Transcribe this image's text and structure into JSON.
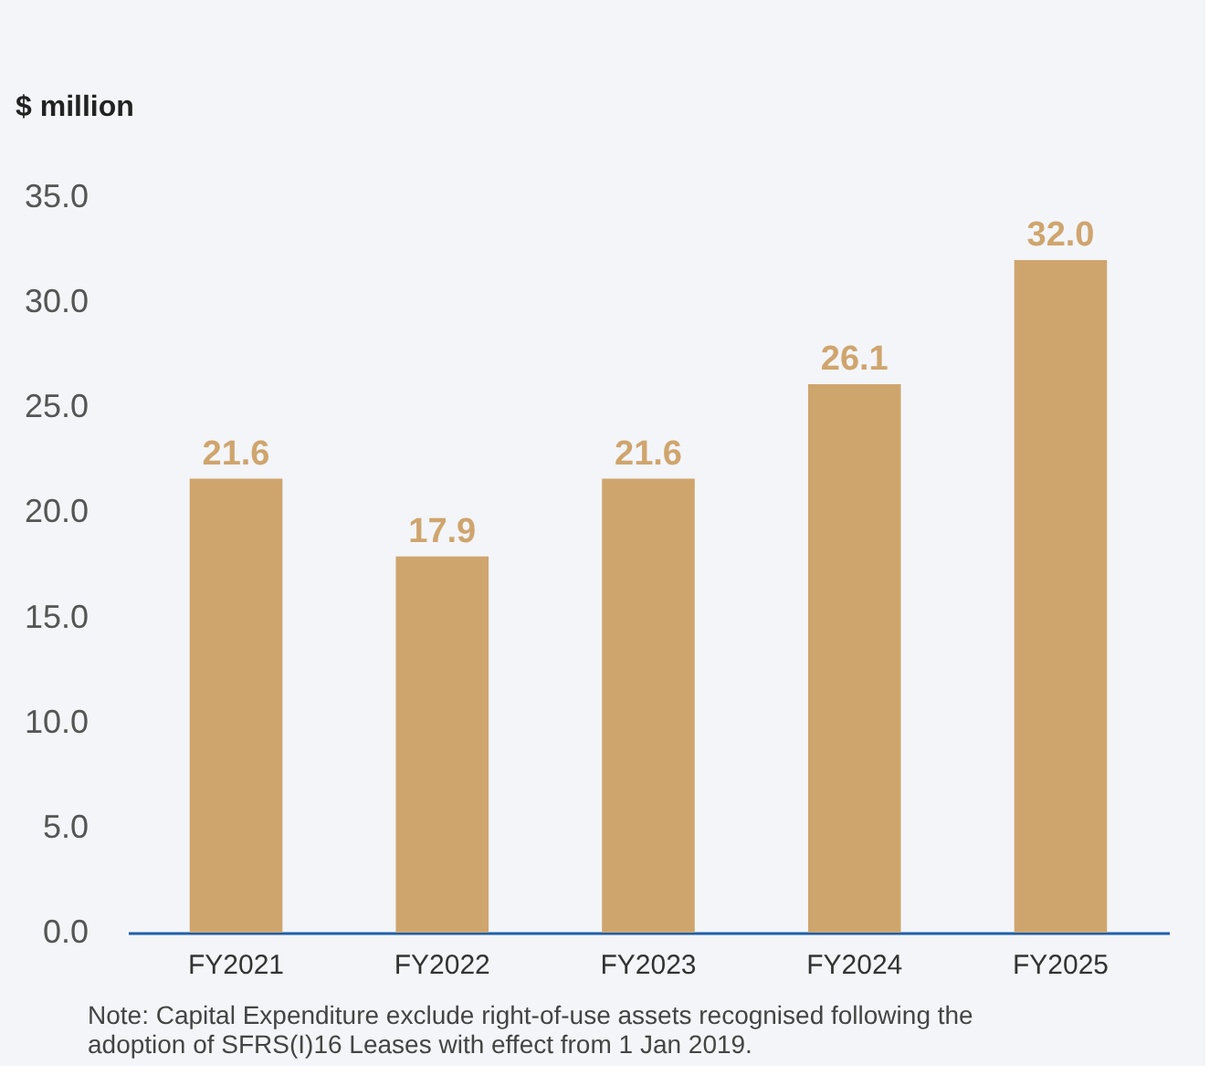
{
  "chart_data": {
    "type": "bar",
    "ylabel": "$ million",
    "categories": [
      "FY2021",
      "FY2022",
      "FY2023",
      "FY2024",
      "FY2025"
    ],
    "values": [
      21.6,
      17.9,
      21.6,
      26.1,
      32.0
    ],
    "value_labels": [
      "21.6",
      "17.9",
      "21.6",
      "26.1",
      "32.0"
    ],
    "color": "#cfa56e",
    "ylim": [
      0,
      35
    ],
    "yticks": [
      {
        "value": 0,
        "label": "0.0"
      },
      {
        "value": 5,
        "label": "5.0"
      },
      {
        "value": 10,
        "label": "10.0"
      },
      {
        "value": 15,
        "label": "15.0"
      },
      {
        "value": 20,
        "label": "20.0"
      },
      {
        "value": 25,
        "label": "25.0"
      },
      {
        "value": 30,
        "label": "30.0"
      },
      {
        "value": 35,
        "label": "35.0"
      }
    ],
    "grid": false,
    "annotations": [
      "Note: Capital Expenditure exclude right-of-use assets recognised following the adoption of SFRS(I)16 Leases with effect from 1 Jan 2019."
    ]
  }
}
